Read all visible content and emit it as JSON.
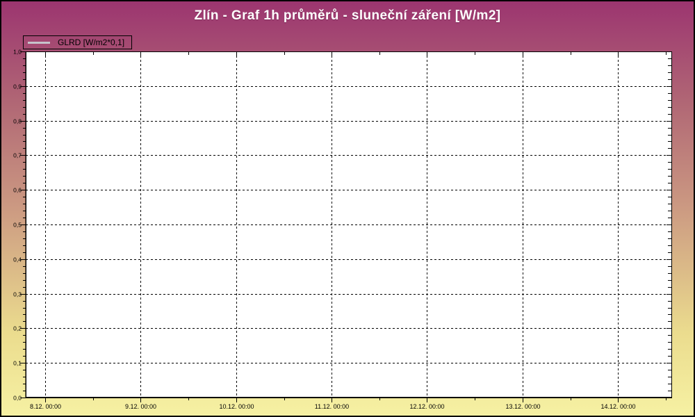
{
  "header": {
    "title": "Zlín - Graf 1h průměrů - sluneční záření [W/m2]",
    "title_color": "#FFFFFF"
  },
  "legend": {
    "label": "GLRD [W/m2*0,1]",
    "line_color": "#C6C3CB",
    "position": "top-left"
  },
  "window": {
    "bg_gradient": [
      "#9C3570",
      "#CC9A82",
      "#EBDC8E",
      "#F6F1A3"
    ],
    "border_color": "#000000"
  },
  "chart_data": {
    "type": "line",
    "title": "Zlín - Graf 1h průměrů - sluneční záření [W/m2]",
    "series": [
      {
        "name": "GLRD [W/m2*0,1]",
        "color": "#C6C3CB",
        "values": [],
        "visible_points": 0
      }
    ],
    "plot_bg": "#FFFFFF",
    "grid": {
      "on": true,
      "style": "dashed",
      "color": "#000000"
    },
    "x_axis": {
      "tick_labels": [
        "8.12. 00:00",
        "9.12. 00:00",
        "10.12. 00:00",
        "11.12. 00:00",
        "12.12. 00:00",
        "13.12. 00:00",
        "14.12. 00:00"
      ],
      "first_tick_frac": 0.0301,
      "tick_spacing_frac": 0.1477,
      "minor_ticks_between_majors": 1
    },
    "y_axis": {
      "min": 0,
      "max": 1,
      "major_step": 0.1,
      "minor_step": 0.02,
      "tick_labels": [
        "0,0",
        "0,1",
        "0,2",
        "0,3",
        "0,4",
        "0,5",
        "0,6",
        "0,7",
        "0,8",
        "0,9",
        "1,0"
      ]
    }
  }
}
